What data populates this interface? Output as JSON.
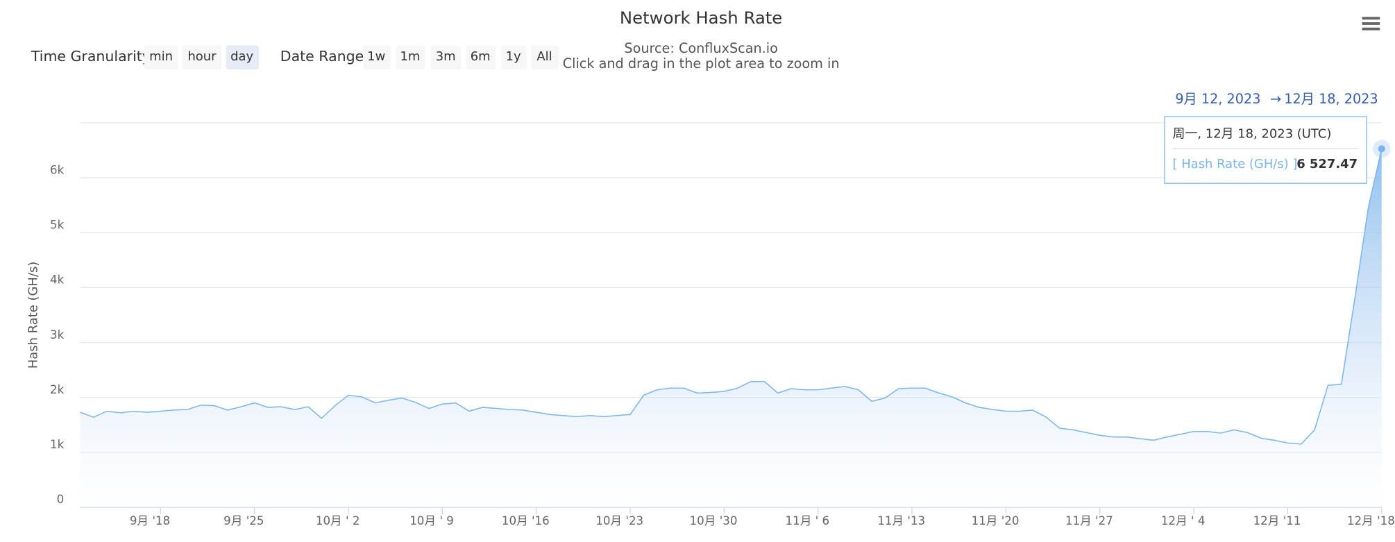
{
  "chart_data": {
    "type": "area",
    "title": "Network Hash Rate",
    "subtitle": "Source: ConfluxScan.io",
    "caption": "Click and drag in the plot area to zoom in",
    "controls": {
      "granularity_label": "Time Granularity:",
      "granularity": [
        "min",
        "hour",
        "day"
      ],
      "range_label": "Date Range:",
      "ranges": [
        "1w",
        "1m",
        "3m",
        "6m",
        "1y",
        "All"
      ]
    },
    "range_display": {
      "from": "9月 12, 2023",
      "arrow": "→",
      "to": "12月 18, 2023"
    },
    "y_label": "Hash Rate (GH/s)",
    "ylim": [
      0,
      7000
    ],
    "yticks": [
      0,
      {
        "value": 1000,
        "label": "1k"
      },
      {
        "value": 2000,
        "label": "2k"
      },
      {
        "value": 3000,
        "label": "3k"
      },
      {
        "value": 4000,
        "label": "4k"
      },
      {
        "value": 5000,
        "label": "5k"
      },
      {
        "value": 6000,
        "label": "6k"
      }
    ],
    "grid": true,
    "xlim": [
      "2023-09-12",
      "2023-12-18"
    ],
    "xticks": [
      {
        "value": "2023-09-18",
        "label": "9月 '18"
      },
      {
        "value": "2023-09-25",
        "label": "9月 '25"
      },
      {
        "value": "2023-10-02",
        "label": "10月 ' 2"
      },
      {
        "value": "2023-10-09",
        "label": "10月 ' 9"
      },
      {
        "value": "2023-10-16",
        "label": "10月 '16"
      },
      {
        "value": "2023-10-23",
        "label": "10月 '23"
      },
      {
        "value": "2023-10-30",
        "label": "10月 '30"
      },
      {
        "value": "2023-11-06",
        "label": "11月 ' 6"
      },
      {
        "value": "2023-11-13",
        "label": "11月 '13"
      },
      {
        "value": "2023-11-20",
        "label": "11月 '20"
      },
      {
        "value": "2023-11-27",
        "label": "11月 '27"
      },
      {
        "value": "2023-12-04",
        "label": "12月 ' 4"
      },
      {
        "value": "2023-12-11",
        "label": "12月 '11"
      },
      {
        "value": "2023-12-18",
        "label": "12月 '18"
      }
    ],
    "x": [
      "2023-09-12",
      "2023-09-13",
      "2023-09-14",
      "2023-09-15",
      "2023-09-16",
      "2023-09-17",
      "2023-09-18",
      "2023-09-19",
      "2023-09-20",
      "2023-09-21",
      "2023-09-22",
      "2023-09-23",
      "2023-09-24",
      "2023-09-25",
      "2023-09-26",
      "2023-09-27",
      "2023-09-28",
      "2023-09-29",
      "2023-09-30",
      "2023-10-01",
      "2023-10-02",
      "2023-10-03",
      "2023-10-04",
      "2023-10-05",
      "2023-10-06",
      "2023-10-07",
      "2023-10-08",
      "2023-10-09",
      "2023-10-10",
      "2023-10-11",
      "2023-10-12",
      "2023-10-13",
      "2023-10-14",
      "2023-10-15",
      "2023-10-16",
      "2023-10-17",
      "2023-10-18",
      "2023-10-19",
      "2023-10-20",
      "2023-10-21",
      "2023-10-22",
      "2023-10-23",
      "2023-10-24",
      "2023-10-25",
      "2023-10-26",
      "2023-10-27",
      "2023-10-28",
      "2023-10-29",
      "2023-10-30",
      "2023-10-31",
      "2023-11-01",
      "2023-11-02",
      "2023-11-03",
      "2023-11-04",
      "2023-11-05",
      "2023-11-06",
      "2023-11-07",
      "2023-11-08",
      "2023-11-09",
      "2023-11-10",
      "2023-11-11",
      "2023-11-12",
      "2023-11-13",
      "2023-11-14",
      "2023-11-15",
      "2023-11-16",
      "2023-11-17",
      "2023-11-18",
      "2023-11-19",
      "2023-11-20",
      "2023-11-21",
      "2023-11-22",
      "2023-11-23",
      "2023-11-24",
      "2023-11-25",
      "2023-11-26",
      "2023-11-27",
      "2023-11-28",
      "2023-11-29",
      "2023-11-30",
      "2023-12-01",
      "2023-12-02",
      "2023-12-03",
      "2023-12-04",
      "2023-12-05",
      "2023-12-06",
      "2023-12-07",
      "2023-12-08",
      "2023-12-09",
      "2023-12-10",
      "2023-12-11",
      "2023-12-12",
      "2023-12-13",
      "2023-12-14",
      "2023-12-15",
      "2023-12-16",
      "2023-12-17",
      "2023-12-18"
    ],
    "series": [
      {
        "name": "Hash Rate (GH/s)",
        "color": "#7cb5ec",
        "values": [
          1730,
          1640,
          1750,
          1720,
          1750,
          1730,
          1750,
          1770,
          1780,
          1860,
          1850,
          1770,
          1830,
          1900,
          1820,
          1830,
          1780,
          1830,
          1620,
          1850,
          2040,
          2010,
          1900,
          1950,
          1990,
          1910,
          1800,
          1880,
          1900,
          1750,
          1820,
          1800,
          1780,
          1770,
          1730,
          1690,
          1670,
          1650,
          1670,
          1650,
          1670,
          1690,
          2040,
          2140,
          2170,
          2170,
          2080,
          2090,
          2110,
          2170,
          2290,
          2290,
          2080,
          2160,
          2140,
          2140,
          2170,
          2200,
          2140,
          1930,
          1990,
          2160,
          2170,
          2170,
          2080,
          2010,
          1900,
          1820,
          1780,
          1750,
          1750,
          1770,
          1640,
          1440,
          1410,
          1360,
          1310,
          1280,
          1280,
          1250,
          1220,
          1280,
          1330,
          1380,
          1380,
          1350,
          1410,
          1360,
          1260,
          1220,
          1170,
          1150,
          1410,
          2220,
          2240,
          3800,
          5450,
          6527.47
        ]
      }
    ],
    "tooltip": {
      "date": "周一, 12月 18, 2023 (UTC)",
      "series_label": "[ Hash Rate (GH/s) ]",
      "value_label": "6 527.47"
    }
  }
}
